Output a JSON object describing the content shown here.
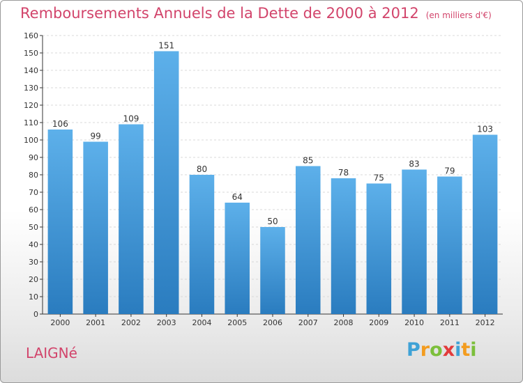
{
  "header": {
    "title": "Remboursements Annuels de la Dette de 2000 à 2012",
    "unit": "(en milliers d'€)"
  },
  "footer": {
    "place": "LAIGNé",
    "brand_letters": [
      "P",
      "r",
      "o",
      "x",
      "i",
      "t",
      "i"
    ],
    "brand_colors": [
      "#3fa2d6",
      "#f39c1f",
      "#7cbf3b",
      "#e23b3b",
      "#3fa2d6",
      "#f39c1f",
      "#7cbf3b"
    ]
  },
  "colors": {
    "title": "#d2446b",
    "bar_top": "#5db0ea",
    "bar_bottom": "#2a7cbf",
    "axis": "#333333",
    "grid": "#d8d8d8"
  },
  "chart_data": {
    "type": "bar",
    "categories": [
      "2000",
      "2001",
      "2002",
      "2003",
      "2004",
      "2005",
      "2006",
      "2007",
      "2008",
      "2009",
      "2010",
      "2011",
      "2012"
    ],
    "values": [
      106,
      99,
      109,
      151,
      80,
      64,
      50,
      85,
      78,
      75,
      83,
      79,
      103
    ],
    "ylim": [
      0,
      160
    ],
    "ytick_step": 10,
    "grid": "horizontal-dashed"
  }
}
